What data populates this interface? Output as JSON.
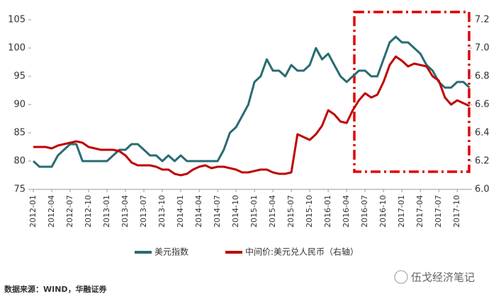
{
  "chart_data": {
    "type": "line",
    "categories": [
      "2012-01",
      null,
      null,
      "2012-04",
      null,
      null,
      "2012-07",
      null,
      null,
      "2012-10",
      null,
      null,
      "2013-01",
      null,
      null,
      "2013-04",
      null,
      null,
      "2013-07",
      null,
      null,
      "2013-10",
      null,
      null,
      "2014-01",
      null,
      null,
      "2014-04",
      null,
      null,
      "2014-07",
      null,
      null,
      "2014-10",
      null,
      null,
      "2015-01",
      null,
      null,
      "2015-04",
      null,
      null,
      "2015-07",
      null,
      null,
      "2015-10",
      null,
      null,
      "2016-01",
      null,
      null,
      "2016-04",
      null,
      null,
      "2016-07",
      null,
      null,
      "2016-10",
      null,
      null,
      "2017-01",
      null,
      null,
      "2017-04",
      null,
      null,
      "2017-07",
      null,
      null,
      "2017-10",
      null,
      null
    ],
    "series": [
      {
        "name": "美元指数",
        "color": "#2a6b73",
        "values": [
          80,
          79,
          79,
          79,
          81,
          82,
          83,
          83,
          80,
          80,
          80,
          80,
          80,
          81,
          82,
          82,
          83,
          83,
          82,
          81,
          81,
          80,
          81,
          80,
          81,
          80,
          80,
          80,
          80,
          80,
          80,
          82,
          85,
          86,
          88,
          90,
          94,
          95,
          98,
          96,
          96,
          95,
          97,
          96,
          96,
          97,
          100,
          98,
          99,
          97,
          95,
          94,
          95,
          96,
          96,
          95,
          95,
          98,
          101,
          102,
          101,
          101,
          100,
          99,
          97,
          96,
          94,
          93,
          93,
          94,
          94,
          93
        ]
      },
      {
        "name": "中间价:美元兑人民币（右轴）",
        "color": "#c00000",
        "axis": "y2",
        "values": [
          6.3,
          6.3,
          6.3,
          6.29,
          6.31,
          6.32,
          6.33,
          6.34,
          6.33,
          6.3,
          6.29,
          6.28,
          6.28,
          6.28,
          6.27,
          6.24,
          6.19,
          6.17,
          6.17,
          6.17,
          6.16,
          6.14,
          6.14,
          6.11,
          6.1,
          6.11,
          6.14,
          6.16,
          6.17,
          6.15,
          6.16,
          6.16,
          6.15,
          6.14,
          6.12,
          6.12,
          6.13,
          6.14,
          6.14,
          6.12,
          6.11,
          6.11,
          6.12,
          6.39,
          6.37,
          6.35,
          6.39,
          6.45,
          6.56,
          6.53,
          6.48,
          6.47,
          6.56,
          6.63,
          6.68,
          6.65,
          6.67,
          6.76,
          6.88,
          6.94,
          6.91,
          6.87,
          6.89,
          6.88,
          6.87,
          6.8,
          6.77,
          6.65,
          6.6,
          6.63,
          6.61,
          6.59
        ]
      }
    ],
    "ylim": [
      75,
      105
    ],
    "yticks": [
      75,
      80,
      85,
      90,
      95,
      100,
      105
    ],
    "y2lim": [
      6,
      7.2
    ],
    "y2ticks": [
      {
        "value": 6,
        "label": "6.0"
      },
      6.2,
      6.4,
      6.6,
      6.8,
      {
        "value": 7,
        "label": "7.0"
      },
      7.2
    ],
    "source": "数据来源：WIND，华融证券",
    "watermark": "伍戈经济笔记"
  }
}
